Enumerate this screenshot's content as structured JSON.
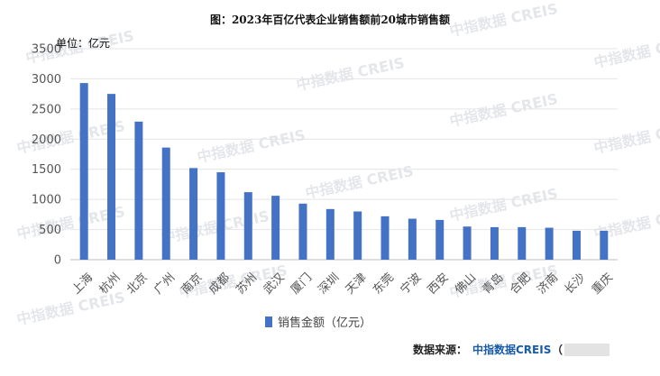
{
  "chart_data": {
    "type": "bar",
    "title": "图：2023年百亿代表企业销售额前20城市销售额",
    "unit_label": "单位：亿元",
    "categories": [
      "上海",
      "杭州",
      "北京",
      "广州",
      "南京",
      "成都",
      "苏州",
      "武汉",
      "厦门",
      "深圳",
      "天津",
      "东莞",
      "宁波",
      "西安",
      "佛山",
      "青岛",
      "合肥",
      "济南",
      "长沙",
      "重庆"
    ],
    "series": [
      {
        "name": "销售金额（亿元）",
        "color": "#4472c4",
        "values": [
          2930,
          2750,
          2290,
          1860,
          1520,
          1450,
          1120,
          1060,
          930,
          840,
          800,
          720,
          680,
          660,
          550,
          540,
          540,
          530,
          480,
          480
        ]
      }
    ],
    "ylim": [
      0,
      3500
    ],
    "yticks": [
      0,
      500,
      1000,
      1500,
      2000,
      2500,
      3000,
      3500
    ],
    "grid": true,
    "legend_position": "bottom"
  },
  "source": {
    "prefix": "数据来源：",
    "brand": "中指数据CREIS",
    "suffix": "（"
  },
  "watermark": "中指数据 CREIS"
}
